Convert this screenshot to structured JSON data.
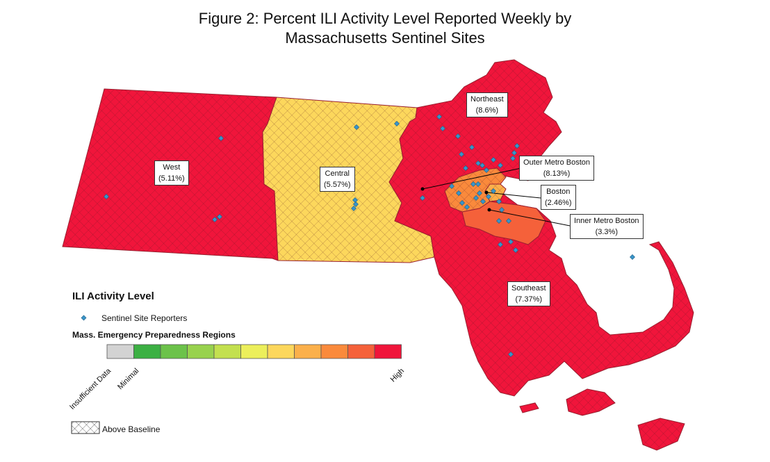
{
  "title": {
    "line1": "Figure 2: Percent ILI Activity Level Reported Weekly by",
    "line2": "Massachusetts Sentinel Sites"
  },
  "colors": {
    "high": "#f0153b",
    "moderate_yellow": "#fcd75c",
    "orange": "#fa8a3c",
    "light_orange": "#fbb04b",
    "insufficient": "#d3d3d3",
    "reporter_dot": "#3a95c9",
    "border": "#9a2030"
  },
  "regions": [
    {
      "id": "northeast",
      "name": "Northeast",
      "value": "(8.6%)",
      "level": "high"
    },
    {
      "id": "west",
      "name": "West",
      "value": "(5.11%)",
      "level": "high"
    },
    {
      "id": "central",
      "name": "Central",
      "value": "(5.57%)",
      "level": "moderate"
    },
    {
      "id": "outer-metro-boston",
      "name": "Outer Metro Boston",
      "value": "(8.13%)",
      "level": "high"
    },
    {
      "id": "boston",
      "name": "Boston",
      "value": "(2.46%)",
      "level": "moderate"
    },
    {
      "id": "inner-metro-boston",
      "name": "Inner Metro Boston",
      "value": "(3.3%)",
      "level": "moderate-high"
    },
    {
      "id": "southeast",
      "name": "Southeast",
      "value": "(7.37%)",
      "level": "high"
    }
  ],
  "legend": {
    "title": "ILI Activity Level",
    "sentinel_label": "Sentinel Site Reporters",
    "regions_title": "Mass. Emergency Preparedness Regions",
    "scale_colors": [
      "#d3d3d3",
      "#3cb043",
      "#6cc24a",
      "#98d24e",
      "#c3e04f",
      "#ecef5b",
      "#fcd75c",
      "#fbb04b",
      "#fa8a3c",
      "#f5613a",
      "#f0153b"
    ],
    "scale_labels": {
      "insufficient": "Insufficient Data",
      "minimal": "Minimal",
      "high": "High"
    },
    "baseline_label": "Above Baseline"
  }
}
